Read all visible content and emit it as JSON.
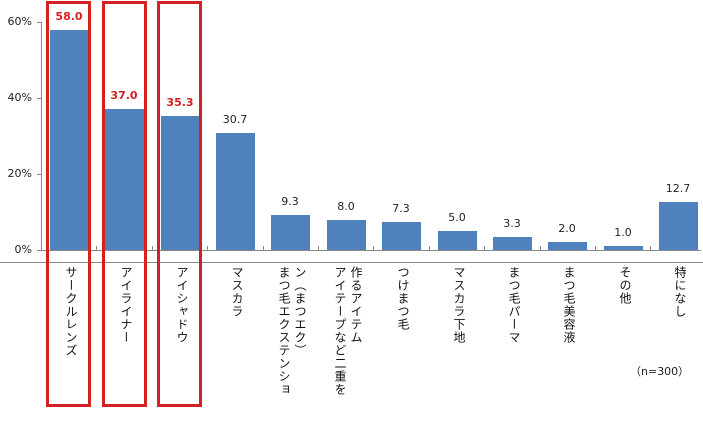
{
  "chart_data": {
    "type": "bar",
    "title": "",
    "xlabel": "",
    "ylabel": "",
    "ylim": [
      0,
      60
    ],
    "yticks": [
      "0%",
      "20%",
      "40%",
      "60%"
    ],
    "grid": false,
    "legend": null,
    "categories": [
      "サークルレンズ",
      "アイライナー",
      "アイシャドウ",
      "マスカラ",
      "まつ毛エクステンション（まつエク）",
      "アイテープなど二重を作るアイテム",
      "つけまつ毛",
      "マスカラ下地",
      "まつ毛パーマ",
      "まつ毛美容液",
      "その他",
      "特になし"
    ],
    "values": [
      58.0,
      37.0,
      35.3,
      30.7,
      9.3,
      8.0,
      7.3,
      5.0,
      3.3,
      2.0,
      1.0,
      12.7
    ],
    "value_labels": [
      "58.0",
      "37.0",
      "35.3",
      "30.7",
      "9.3",
      "8.0",
      "7.3",
      "5.0",
      "3.3",
      "2.0",
      "1.0",
      "12.7"
    ],
    "highlighted_indices": [
      0,
      1,
      2
    ],
    "annotation": "（n=300）",
    "colors": {
      "bar": "#4f81bd",
      "highlight": "#d42020",
      "axis": "#888888"
    }
  },
  "category_label_lines": [
    [
      "サークルレンズ"
    ],
    [
      "アイライナー"
    ],
    [
      "アイシャドウ"
    ],
    [
      "マスカラ"
    ],
    [
      "ン（まつエク）",
      "まつ毛エクステンショ"
    ],
    [
      "作るアイテム",
      "アイテープなど二重を"
    ],
    [
      "つけまつ毛"
    ],
    [
      "マスカラ下地"
    ],
    [
      "まつ毛パーマ"
    ],
    [
      "まつ毛美容液"
    ],
    [
      "その他"
    ],
    [
      "特になし"
    ]
  ]
}
